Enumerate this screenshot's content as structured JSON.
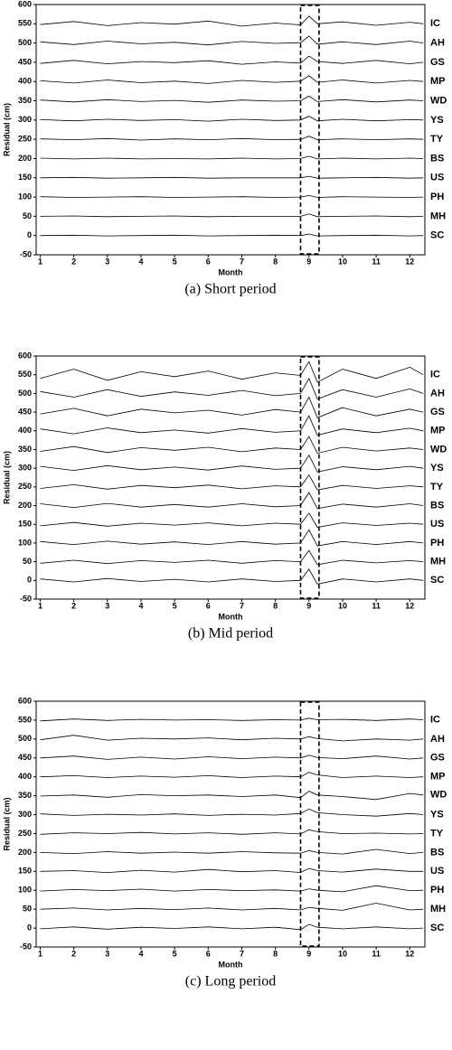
{
  "chart_data": [
    {
      "type": "line",
      "title": "(a) Short period",
      "x_label": "Month",
      "y_label": "Residual (cm)",
      "xlim": [
        0.88,
        12.45
      ],
      "xticks": [
        1,
        2,
        3,
        4,
        5,
        6,
        7,
        8,
        9,
        10,
        11,
        12
      ],
      "ylim": [
        -50,
        600
      ],
      "yticks": [
        -50,
        0,
        50,
        100,
        150,
        200,
        250,
        300,
        350,
        400,
        450,
        500,
        550,
        600
      ],
      "highlight_x": [
        8.75,
        9.3
      ],
      "x": [
        1,
        2,
        3,
        4,
        5,
        6,
        7,
        8,
        8.75,
        9,
        9.25,
        10,
        11,
        12,
        12.4
      ],
      "series": [
        {
          "name": "IC",
          "color": "#000000",
          "values": [
            548,
            556,
            545,
            553,
            549,
            557,
            544,
            552,
            547,
            570,
            550,
            555,
            546,
            554,
            550
          ]
        },
        {
          "name": "AH",
          "color": "#000000",
          "values": [
            503,
            496,
            505,
            498,
            502,
            495,
            504,
            499,
            501,
            518,
            497,
            503,
            496,
            505,
            500
          ]
        },
        {
          "name": "GS",
          "color": "#000000",
          "values": [
            447,
            455,
            446,
            452,
            449,
            454,
            445,
            451,
            448,
            466,
            452,
            447,
            455,
            446,
            450
          ]
        },
        {
          "name": "MP",
          "color": "#000000",
          "values": [
            402,
            396,
            404,
            397,
            401,
            395,
            403,
            398,
            401,
            415,
            398,
            404,
            396,
            403,
            400
          ]
        },
        {
          "name": "WD",
          "color": "#000000",
          "values": [
            352,
            347,
            353,
            348,
            351,
            346,
            352,
            349,
            350,
            362,
            348,
            353,
            347,
            352,
            350
          ]
        },
        {
          "name": "YS",
          "color": "#000000",
          "values": [
            301,
            298,
            302,
            299,
            301,
            297,
            302,
            299,
            300,
            310,
            298,
            302,
            298,
            301,
            300
          ]
        },
        {
          "name": "TY",
          "color": "#000000",
          "values": [
            251,
            249,
            252,
            248,
            251,
            249,
            252,
            249,
            250,
            258,
            249,
            251,
            249,
            251,
            250
          ]
        },
        {
          "name": "BS",
          "color": "#000000",
          "values": [
            201,
            199,
            201,
            199,
            200,
            199,
            201,
            199,
            200,
            206,
            199,
            201,
            199,
            201,
            200
          ]
        },
        {
          "name": "US",
          "color": "#000000",
          "values": [
            150,
            151,
            149,
            150,
            151,
            149,
            150,
            150,
            150,
            154,
            149,
            150,
            151,
            149,
            150
          ]
        },
        {
          "name": "PH",
          "color": "#000000",
          "values": [
            101,
            99,
            100,
            101,
            99,
            100,
            101,
            99,
            100,
            104,
            99,
            101,
            100,
            99,
            100
          ]
        },
        {
          "name": "MH",
          "color": "#000000",
          "values": [
            50,
            51,
            49,
            50,
            51,
            49,
            50,
            50,
            50,
            56,
            49,
            50,
            51,
            49,
            50
          ]
        },
        {
          "name": "SC",
          "color": "#000000",
          "values": [
            0,
            1,
            -1,
            0,
            1,
            -1,
            0,
            1,
            0,
            4,
            -1,
            0,
            1,
            -1,
            0
          ]
        }
      ]
    },
    {
      "type": "line",
      "title": "(b) Mid period",
      "x_label": "Month",
      "y_label": "Residual (cm)",
      "xlim": [
        0.88,
        12.45
      ],
      "xticks": [
        1,
        2,
        3,
        4,
        5,
        6,
        7,
        8,
        9,
        10,
        11,
        12
      ],
      "ylim": [
        -50,
        600
      ],
      "yticks": [
        -50,
        0,
        50,
        100,
        150,
        200,
        250,
        300,
        350,
        400,
        450,
        500,
        550,
        600
      ],
      "highlight_x": [
        8.75,
        9.3
      ],
      "x": [
        1,
        2,
        3,
        4,
        5,
        6,
        7,
        8,
        8.75,
        9,
        9.25,
        10,
        11,
        12,
        12.4
      ],
      "series": [
        {
          "name": "IC",
          "color": "#000000",
          "values": [
            540,
            565,
            535,
            558,
            545,
            560,
            538,
            555,
            548,
            585,
            530,
            565,
            540,
            570,
            550
          ]
        },
        {
          "name": "AH",
          "color": "#000000",
          "values": [
            505,
            490,
            510,
            492,
            504,
            495,
            508,
            494,
            500,
            540,
            485,
            510,
            490,
            512,
            500
          ]
        },
        {
          "name": "GS",
          "color": "#000000",
          "values": [
            445,
            460,
            440,
            458,
            448,
            455,
            442,
            457,
            450,
            490,
            435,
            462,
            440,
            458,
            450
          ]
        },
        {
          "name": "MP",
          "color": "#000000",
          "values": [
            405,
            392,
            408,
            395,
            402,
            394,
            406,
            396,
            400,
            440,
            388,
            405,
            395,
            407,
            400
          ]
        },
        {
          "name": "WD",
          "color": "#000000",
          "values": [
            345,
            358,
            342,
            355,
            348,
            356,
            344,
            354,
            350,
            385,
            340,
            356,
            346,
            354,
            350
          ]
        },
        {
          "name": "YS",
          "color": "#000000",
          "values": [
            305,
            294,
            307,
            296,
            303,
            295,
            306,
            297,
            300,
            335,
            290,
            304,
            296,
            305,
            300
          ]
        },
        {
          "name": "TY",
          "color": "#000000",
          "values": [
            246,
            256,
            244,
            254,
            248,
            255,
            245,
            253,
            250,
            282,
            242,
            254,
            246,
            253,
            250
          ]
        },
        {
          "name": "BS",
          "color": "#000000",
          "values": [
            205,
            195,
            206,
            196,
            203,
            196,
            205,
            197,
            200,
            235,
            192,
            204,
            196,
            205,
            200
          ]
        },
        {
          "name": "US",
          "color": "#000000",
          "values": [
            146,
            155,
            145,
            153,
            148,
            154,
            146,
            153,
            150,
            180,
            142,
            154,
            147,
            153,
            150
          ]
        },
        {
          "name": "PH",
          "color": "#000000",
          "values": [
            104,
            96,
            105,
            97,
            103,
            96,
            104,
            97,
            100,
            135,
            92,
            104,
            96,
            104,
            100
          ]
        },
        {
          "name": "MH",
          "color": "#000000",
          "values": [
            46,
            54,
            45,
            53,
            48,
            54,
            46,
            53,
            50,
            80,
            42,
            54,
            47,
            53,
            50
          ]
        },
        {
          "name": "SC",
          "color": "#000000",
          "values": [
            4,
            -4,
            5,
            -3,
            3,
            -4,
            4,
            -3,
            0,
            30,
            -10,
            4,
            -4,
            4,
            0
          ]
        }
      ]
    },
    {
      "type": "line",
      "title": "(c) Long period",
      "x_label": "Month",
      "y_label": "Residual (cm)",
      "xlim": [
        0.88,
        12.45
      ],
      "xticks": [
        1,
        2,
        3,
        4,
        5,
        6,
        7,
        8,
        9,
        10,
        11,
        12
      ],
      "ylim": [
        -50,
        600
      ],
      "yticks": [
        -50,
        0,
        50,
        100,
        150,
        200,
        250,
        300,
        350,
        400,
        450,
        500,
        550,
        600
      ],
      "highlight_x": [
        8.75,
        9.3
      ],
      "x": [
        1,
        2,
        3,
        4,
        5,
        6,
        7,
        8,
        8.75,
        9,
        9.25,
        10,
        11,
        12,
        12.4
      ],
      "series": [
        {
          "name": "IC",
          "color": "#000000",
          "values": [
            548,
            553,
            549,
            552,
            550,
            551,
            549,
            551,
            550,
            555,
            551,
            552,
            549,
            553,
            551
          ]
        },
        {
          "name": "AH",
          "color": "#000000",
          "values": [
            498,
            510,
            497,
            502,
            500,
            503,
            498,
            502,
            500,
            506,
            501,
            495,
            500,
            497,
            500
          ]
        },
        {
          "name": "GS",
          "color": "#000000",
          "values": [
            450,
            455,
            446,
            452,
            447,
            453,
            448,
            452,
            450,
            457,
            451,
            448,
            455,
            447,
            450
          ]
        },
        {
          "name": "MP",
          "color": "#000000",
          "values": [
            400,
            403,
            398,
            402,
            399,
            403,
            398,
            402,
            400,
            412,
            405,
            398,
            402,
            398,
            400
          ]
        },
        {
          "name": "WD",
          "color": "#000000",
          "values": [
            349,
            352,
            346,
            353,
            350,
            352,
            348,
            352,
            345,
            362,
            352,
            348,
            340,
            356,
            352
          ]
        },
        {
          "name": "YS",
          "color": "#000000",
          "values": [
            302,
            298,
            301,
            299,
            302,
            298,
            301,
            299,
            303,
            315,
            305,
            300,
            296,
            303,
            300
          ]
        },
        {
          "name": "TY",
          "color": "#000000",
          "values": [
            248,
            252,
            250,
            253,
            249,
            252,
            248,
            252,
            249,
            260,
            255,
            250,
            251,
            249,
            250
          ]
        },
        {
          "name": "BS",
          "color": "#000000",
          "values": [
            200,
            197,
            202,
            198,
            201,
            198,
            202,
            199,
            198,
            205,
            200,
            196,
            208,
            197,
            200
          ]
        },
        {
          "name": "US",
          "color": "#000000",
          "values": [
            150,
            152,
            147,
            153,
            148,
            155,
            149,
            152,
            147,
            158,
            152,
            148,
            156,
            150,
            150
          ]
        },
        {
          "name": "PH",
          "color": "#000000",
          "values": [
            98,
            102,
            99,
            103,
            98,
            102,
            99,
            101,
            98,
            104,
            100,
            96,
            112,
            99,
            100
          ]
        },
        {
          "name": "MH",
          "color": "#000000",
          "values": [
            50,
            53,
            48,
            52,
            49,
            53,
            48,
            52,
            48,
            55,
            52,
            47,
            66,
            48,
            50
          ]
        },
        {
          "name": "SC",
          "color": "#000000",
          "values": [
            -2,
            3,
            -3,
            2,
            -1,
            3,
            -2,
            2,
            -4,
            10,
            2,
            -2,
            3,
            -2,
            0
          ]
        }
      ]
    }
  ]
}
